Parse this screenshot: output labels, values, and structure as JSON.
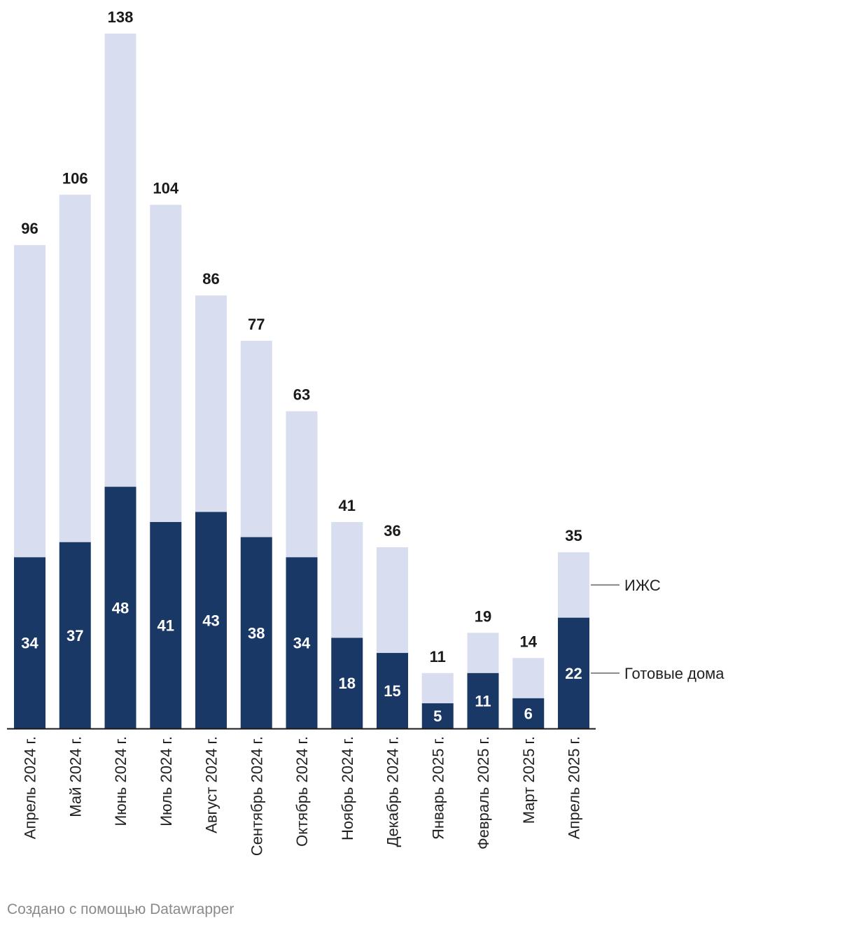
{
  "chart_data": {
    "type": "bar",
    "stacked": true,
    "categories": [
      "Апрель 2024 г.",
      "Май 2024 г.",
      "Июнь 2024 г.",
      "Июль 2024 г.",
      "Август 2024 г.",
      "Сентябрь 2024 г.",
      "Октябрь 2024 г.",
      "Ноябрь 2024 г.",
      "Декабрь 2024 г.",
      "Январь 2025 г.",
      "Февраль 2025 г.",
      "Март 2025 г.",
      "Апрель 2025 г."
    ],
    "series": [
      {
        "name": "Готовые дома",
        "color": "#193866",
        "values": [
          34,
          37,
          48,
          41,
          43,
          38,
          34,
          18,
          15,
          5,
          11,
          6,
          22
        ]
      },
      {
        "name": "ИЖС",
        "color": "#d8def0",
        "values": [
          62,
          69,
          90,
          63,
          43,
          39,
          29,
          23,
          21,
          6,
          8,
          8,
          13
        ]
      }
    ],
    "totals": [
      96,
      106,
      138,
      104,
      86,
      77,
      63,
      41,
      36,
      11,
      19,
      14,
      35
    ],
    "ylim": [
      0,
      138
    ],
    "grid": false,
    "legend": "direct labels right"
  },
  "credit": "Создано с помощью Datawrapper"
}
